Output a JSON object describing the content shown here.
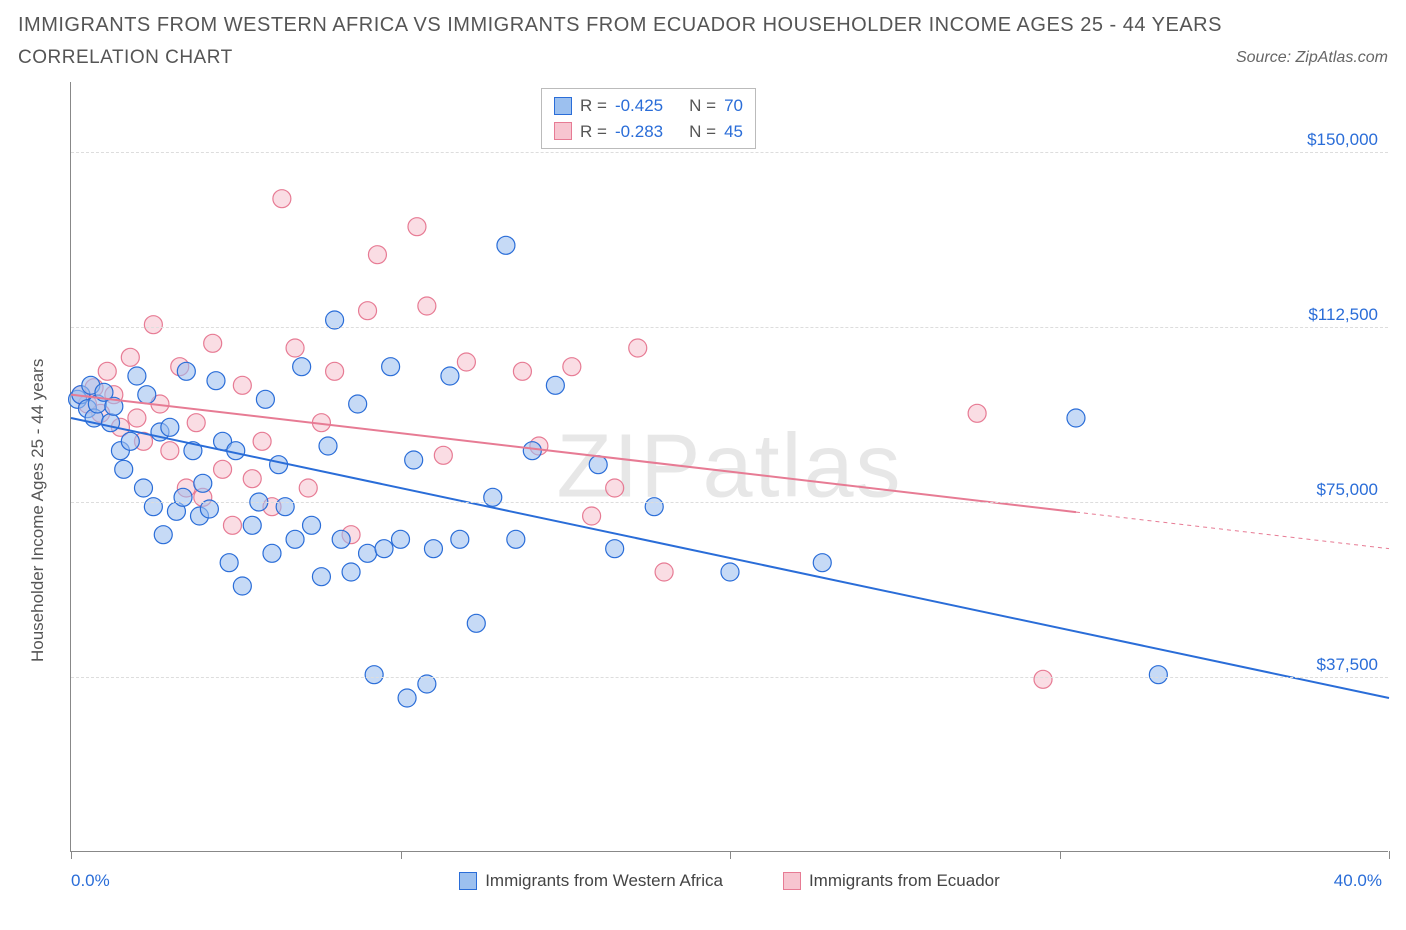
{
  "header": {
    "title": "IMMIGRANTS FROM WESTERN AFRICA VS IMMIGRANTS FROM ECUADOR HOUSEHOLDER INCOME AGES 25 - 44 YEARS",
    "subtitle": "CORRELATION CHART",
    "source_prefix": "Source: ",
    "source_name": "ZipAtlas.com"
  },
  "chart": {
    "type": "scatter",
    "y_axis_title": "Householder Income Ages 25 - 44 years",
    "xlim": [
      0,
      40
    ],
    "ylim": [
      0,
      165000
    ],
    "x_ticks": [
      0,
      10,
      20,
      30,
      40
    ],
    "x_tick_labels": [
      "0.0%",
      "",
      "",
      "",
      "40.0%"
    ],
    "y_gridlines": [
      37500,
      75000,
      112500,
      150000
    ],
    "y_tick_labels": [
      "$37,500",
      "$75,000",
      "$112,500",
      "$150,000"
    ],
    "background_color": "#ffffff",
    "grid_color": "#dddddd",
    "axis_color": "#888888",
    "label_color": "#555555",
    "tick_label_color": "#2a6dd8",
    "marker_radius": 9,
    "marker_stroke_width": 1.2,
    "marker_fill_opacity": 0.28,
    "line_width": 2,
    "watermark": "ZIPatlas",
    "series": [
      {
        "id": "western_africa",
        "label": "Immigrants from Western Africa",
        "color_stroke": "#2a6dd8",
        "color_fill": "#9cc0ef",
        "R": "-0.425",
        "N": "70",
        "trend": {
          "x1": 0,
          "y1": 93000,
          "x2": 40,
          "y2": 33000,
          "solid_until_x": 40
        },
        "points": [
          [
            0.2,
            97000
          ],
          [
            0.3,
            98000
          ],
          [
            0.5,
            95000
          ],
          [
            0.6,
            100000
          ],
          [
            0.7,
            93000
          ],
          [
            0.8,
            96000
          ],
          [
            1.0,
            98500
          ],
          [
            1.2,
            92000
          ],
          [
            1.3,
            95500
          ],
          [
            1.5,
            86000
          ],
          [
            1.6,
            82000
          ],
          [
            1.8,
            88000
          ],
          [
            2.0,
            102000
          ],
          [
            2.2,
            78000
          ],
          [
            2.3,
            98000
          ],
          [
            2.5,
            74000
          ],
          [
            2.7,
            90000
          ],
          [
            2.8,
            68000
          ],
          [
            3.0,
            91000
          ],
          [
            3.2,
            73000
          ],
          [
            3.4,
            76000
          ],
          [
            3.5,
            103000
          ],
          [
            3.7,
            86000
          ],
          [
            3.9,
            72000
          ],
          [
            4.0,
            79000
          ],
          [
            4.2,
            73500
          ],
          [
            4.4,
            101000
          ],
          [
            4.6,
            88000
          ],
          [
            4.8,
            62000
          ],
          [
            5.0,
            86000
          ],
          [
            5.2,
            57000
          ],
          [
            5.5,
            70000
          ],
          [
            5.7,
            75000
          ],
          [
            5.9,
            97000
          ],
          [
            6.1,
            64000
          ],
          [
            6.3,
            83000
          ],
          [
            6.5,
            74000
          ],
          [
            6.8,
            67000
          ],
          [
            7.0,
            104000
          ],
          [
            7.3,
            70000
          ],
          [
            7.6,
            59000
          ],
          [
            7.8,
            87000
          ],
          [
            8.0,
            114000
          ],
          [
            8.2,
            67000
          ],
          [
            8.5,
            60000
          ],
          [
            8.7,
            96000
          ],
          [
            9.0,
            64000
          ],
          [
            9.2,
            38000
          ],
          [
            9.5,
            65000
          ],
          [
            9.7,
            104000
          ],
          [
            10.0,
            67000
          ],
          [
            10.2,
            33000
          ],
          [
            10.4,
            84000
          ],
          [
            10.8,
            36000
          ],
          [
            11.0,
            65000
          ],
          [
            11.5,
            102000
          ],
          [
            11.8,
            67000
          ],
          [
            12.3,
            49000
          ],
          [
            12.8,
            76000
          ],
          [
            13.2,
            130000
          ],
          [
            13.5,
            67000
          ],
          [
            14.0,
            86000
          ],
          [
            14.7,
            100000
          ],
          [
            16.0,
            83000
          ],
          [
            16.5,
            65000
          ],
          [
            17.7,
            74000
          ],
          [
            20.0,
            60000
          ],
          [
            22.8,
            62000
          ],
          [
            30.5,
            93000
          ],
          [
            33.0,
            38000
          ]
        ]
      },
      {
        "id": "ecuador",
        "label": "Immigrants from Ecuador",
        "color_stroke": "#e77b94",
        "color_fill": "#f7c5d0",
        "R": "-0.283",
        "N": "45",
        "trend": {
          "x1": 0,
          "y1": 98000,
          "x2": 40,
          "y2": 65000,
          "solid_until_x": 30.5
        },
        "points": [
          [
            0.3,
            98000
          ],
          [
            0.5,
            96000
          ],
          [
            0.7,
            99500
          ],
          [
            0.9,
            94000
          ],
          [
            1.1,
            103000
          ],
          [
            1.3,
            98000
          ],
          [
            1.5,
            91000
          ],
          [
            1.8,
            106000
          ],
          [
            2.0,
            93000
          ],
          [
            2.2,
            88000
          ],
          [
            2.5,
            113000
          ],
          [
            2.7,
            96000
          ],
          [
            3.0,
            86000
          ],
          [
            3.3,
            104000
          ],
          [
            3.5,
            78000
          ],
          [
            3.8,
            92000
          ],
          [
            4.0,
            76000
          ],
          [
            4.3,
            109000
          ],
          [
            4.6,
            82000
          ],
          [
            4.9,
            70000
          ],
          [
            5.2,
            100000
          ],
          [
            5.5,
            80000
          ],
          [
            5.8,
            88000
          ],
          [
            6.1,
            74000
          ],
          [
            6.4,
            140000
          ],
          [
            6.8,
            108000
          ],
          [
            7.2,
            78000
          ],
          [
            7.6,
            92000
          ],
          [
            8.0,
            103000
          ],
          [
            8.5,
            68000
          ],
          [
            9.0,
            116000
          ],
          [
            9.3,
            128000
          ],
          [
            10.5,
            134000
          ],
          [
            10.8,
            117000
          ],
          [
            11.3,
            85000
          ],
          [
            12.0,
            105000
          ],
          [
            13.7,
            103000
          ],
          [
            14.2,
            87000
          ],
          [
            15.2,
            104000
          ],
          [
            15.8,
            72000
          ],
          [
            16.5,
            78000
          ],
          [
            17.2,
            108000
          ],
          [
            18.0,
            60000
          ],
          [
            27.5,
            94000
          ],
          [
            29.5,
            37000
          ]
        ]
      }
    ]
  },
  "legend_stats_labels": {
    "R": "R =",
    "N": "N ="
  }
}
